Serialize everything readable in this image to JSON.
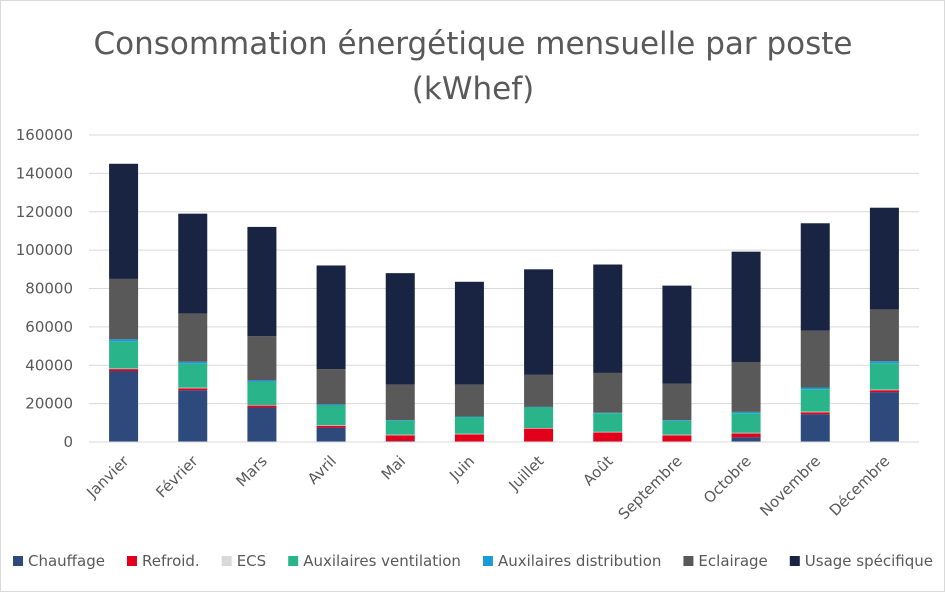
{
  "chart_data": {
    "type": "bar",
    "stacked": true,
    "title": "Consommation énergétique mensuelle par poste (kWhef)",
    "title_lines": [
      "Consommation énergétique mensuelle par poste",
      "(kWhef)"
    ],
    "xlabel": "",
    "ylabel": "",
    "ylim": [
      0,
      160000
    ],
    "yticks": [
      0,
      20000,
      40000,
      60000,
      80000,
      100000,
      120000,
      140000,
      160000
    ],
    "ytick_labels": [
      "0",
      "20000",
      "40000",
      "60000",
      "80000",
      "100000",
      "120000",
      "140000",
      "160000"
    ],
    "grid": true,
    "legend_position": "bottom",
    "categories": [
      "Janvier",
      "Février",
      "Mars",
      "Avril",
      "Mai",
      "Juin",
      "Juillet",
      "Août",
      "Septembre",
      "Octobre",
      "Novembre",
      "Décembre"
    ],
    "series": [
      {
        "name": "Chauffage",
        "color": "#2e4a7d",
        "values": [
          37000,
          27000,
          18000,
          7500,
          500,
          0,
          0,
          0,
          0,
          2500,
          14500,
          26000
        ]
      },
      {
        "name": "Refroid.",
        "color": "#e2001a",
        "values": [
          1000,
          1000,
          1000,
          1000,
          3000,
          4000,
          7000,
          5000,
          3500,
          2000,
          1000,
          1000
        ]
      },
      {
        "name": "ECS",
        "color": "#d9d9d9",
        "values": [
          300,
          300,
          300,
          300,
          300,
          300,
          300,
          300,
          300,
          300,
          300,
          300
        ]
      },
      {
        "name": "Auxilaires ventilation",
        "color": "#2ab48a",
        "values": [
          14000,
          12500,
          12000,
          10200,
          7200,
          8700,
          10700,
          9700,
          7200,
          10200,
          11700,
          13700
        ]
      },
      {
        "name": "Auxilaires distribution",
        "color": "#1a9bd7",
        "values": [
          1200,
          1000,
          800,
          600,
          400,
          300,
          300,
          300,
          400,
          700,
          900,
          1100
        ]
      },
      {
        "name": "Eclairage",
        "color": "#595959",
        "values": [
          31500,
          25200,
          23000,
          18400,
          18600,
          16700,
          16700,
          20700,
          19100,
          26000,
          29600,
          27000
        ]
      },
      {
        "name": "Usage spécifique",
        "color": "#182441",
        "values": [
          60000,
          52000,
          57000,
          54000,
          58000,
          53500,
          55000,
          56500,
          51000,
          57500,
          56000,
          53000
        ]
      }
    ]
  }
}
